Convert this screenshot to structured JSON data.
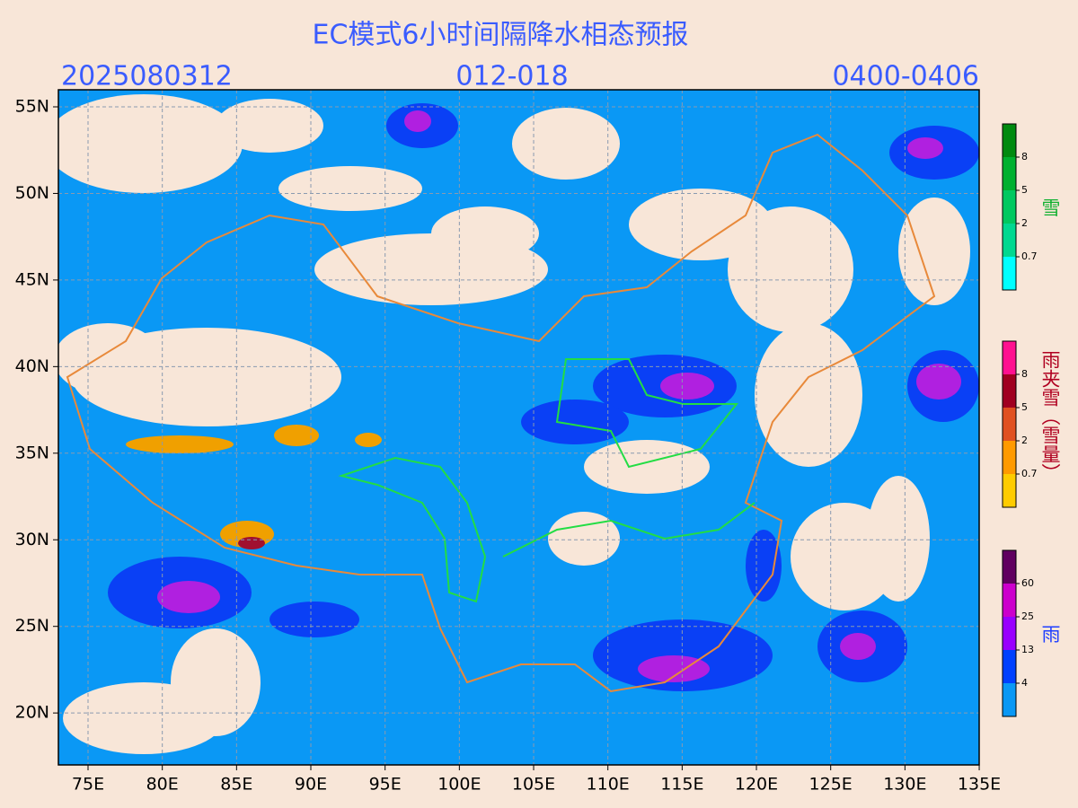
{
  "title": "EC模式6小时间隔降水相态预报",
  "init_time": "2025080312",
  "forecast_hours": "012-018",
  "valid_time": "0400-0406",
  "map": {
    "lat_labels": [
      "55N",
      "50N",
      "45N",
      "40N",
      "35N",
      "30N",
      "25N",
      "20N"
    ],
    "lon_labels": [
      "75E",
      "80E",
      "85E",
      "90E",
      "95E",
      "100E",
      "105E",
      "110E",
      "115E",
      "120E",
      "125E",
      "130E",
      "135E"
    ]
  },
  "legend": {
    "snow": {
      "label": "雪",
      "ticks": [
        "8",
        "5",
        "2",
        "0.7"
      ]
    },
    "sleet": {
      "label": "雨夹雪（雪量）",
      "ticks": [
        "8",
        "5",
        "2",
        "0.7"
      ]
    },
    "rain": {
      "label": "雨",
      "ticks": [
        "60",
        "25",
        "13",
        "4"
      ]
    }
  }
}
